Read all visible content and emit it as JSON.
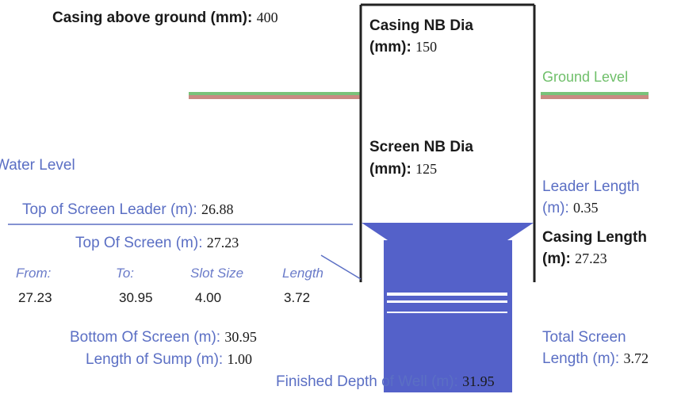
{
  "casing_above_ground": {
    "label": "Casing above ground (mm):",
    "value": "400"
  },
  "casing_nb_dia": {
    "label_line1": "Casing NB Dia",
    "label_line2": "(mm):",
    "value": "150"
  },
  "ground_level": {
    "label": "Ground Level"
  },
  "screen_nb_dia": {
    "label_line1": "Screen NB Dia",
    "label_line2": "(mm):",
    "value": "125"
  },
  "water_level": {
    "label": "Water Level"
  },
  "top_screen_leader": {
    "label": "Top of Screen Leader (m):",
    "value": "26.88"
  },
  "leader_length": {
    "label_line1": "Leader Length",
    "label_line2": "(m):",
    "value": "0.35"
  },
  "top_of_screen": {
    "label": "Top Of Screen (m):",
    "value": "27.23"
  },
  "casing_length": {
    "label_line1": "Casing Length",
    "label_line2": "(m):",
    "value": "27.23"
  },
  "screen_table": {
    "headers": [
      "From:",
      "To:",
      "Slot Size",
      "Length"
    ],
    "row": [
      "27.23",
      "30.95",
      "4.00",
      "3.72"
    ]
  },
  "bottom_of_screen": {
    "label": "Bottom Of Screen (m):",
    "value": "30.95"
  },
  "length_of_sump": {
    "label": "Length of Sump (m):",
    "value": "1.00"
  },
  "total_screen_length": {
    "label_line1": "Total Screen",
    "label_line2": "Length (m):",
    "value": "3.72"
  },
  "finished_depth": {
    "label": "Finished Depth of Well (m):",
    "value": "31.95"
  },
  "colors": {
    "ground_green": "#7ac27a",
    "ground_red": "#c98a82",
    "screen_blue": "#5461c9",
    "label_blue": "#5b6fc4",
    "casing_black": "#222222"
  }
}
